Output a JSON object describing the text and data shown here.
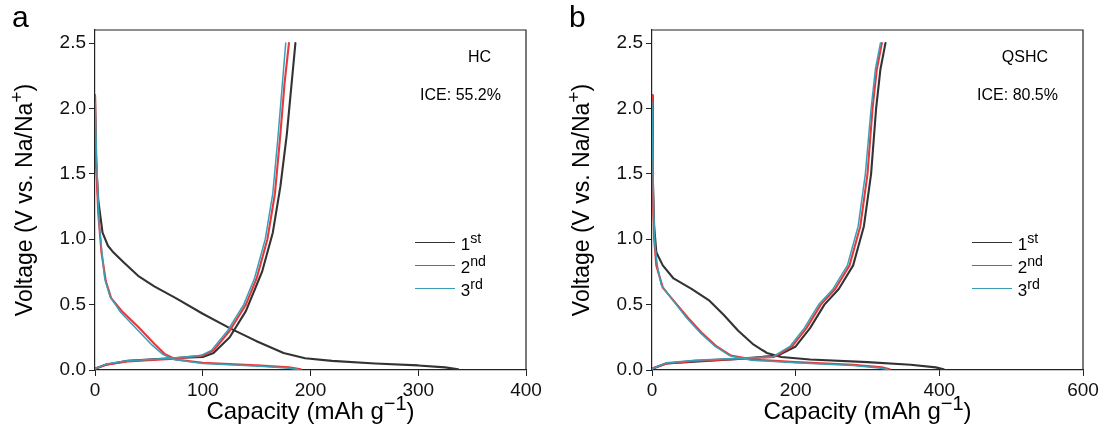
{
  "chart_data": [
    {
      "type": "line",
      "title": "a",
      "xlabel": "Capacity (mAh g$^{−1}$)",
      "ylabel": "Voltage (V vs. Na/Na$^{+}$)",
      "xlim": [
        0,
        400
      ],
      "xticks": [
        0,
        100,
        200,
        300,
        400
      ],
      "ylim": [
        0,
        2.6
      ],
      "yticks": [
        {
          "value": 0,
          "label": "0.0"
        },
        0.5,
        {
          "value": 1,
          "label": "1.0"
        },
        1.5,
        {
          "value": 2,
          "label": "2.0"
        },
        2.5
      ],
      "grid": false,
      "legend": "bottom right",
      "marker": "none",
      "line_style": "solid",
      "annotations": [
        "HC",
        "ICE: 55.2%"
      ],
      "series": [
        {
          "name": "1$^{st}$",
          "color": "#333333",
          "x": [
            0,
            1,
            3,
            7,
            12,
            17,
            27,
            40,
            55,
            75,
            100,
            125,
            150,
            175,
            195,
            220,
            260,
            300,
            325,
            337,
            null,
            0,
            10,
            30,
            70,
            100,
            110,
            125,
            140,
            155,
            165,
            172,
            178,
            182,
            186
          ],
          "values": [
            2.1,
            1.6,
            1.3,
            1.05,
            0.95,
            0.9,
            0.82,
            0.72,
            0.64,
            0.55,
            0.43,
            0.32,
            0.22,
            0.13,
            0.09,
            0.07,
            0.05,
            0.035,
            0.02,
            0.005,
            null,
            0.01,
            0.04,
            0.07,
            0.09,
            0.1,
            0.13,
            0.25,
            0.45,
            0.75,
            1.05,
            1.4,
            1.8,
            2.15,
            2.5
          ]
        },
        {
          "name": "2$^{nd}$",
          "color": "#e8383d",
          "x": [
            0,
            1,
            3,
            6,
            10,
            15,
            25,
            40,
            55,
            65,
            75,
            100,
            150,
            180,
            191,
            null,
            0,
            10,
            30,
            70,
            100,
            110,
            125,
            140,
            150,
            160,
            167,
            172,
            176,
            180
          ],
          "values": [
            2.1,
            1.6,
            1.2,
            0.9,
            0.68,
            0.55,
            0.45,
            0.33,
            0.2,
            0.12,
            0.08,
            0.055,
            0.035,
            0.02,
            0.005,
            null,
            0.01,
            0.04,
            0.065,
            0.085,
            0.11,
            0.15,
            0.3,
            0.5,
            0.7,
            1.0,
            1.35,
            1.8,
            2.2,
            2.5
          ]
        },
        {
          "name": "3$^{rd}$",
          "color": "#3a9fb5",
          "x": [
            0,
            2,
            4,
            7,
            9,
            14,
            24,
            38,
            53,
            63,
            73,
            100,
            150,
            178,
            188,
            null,
            0,
            10,
            30,
            70,
            98,
            108,
            123,
            138,
            148,
            158,
            165,
            170,
            174,
            177
          ],
          "values": [
            2.05,
            1.5,
            1.1,
            0.85,
            0.7,
            0.56,
            0.44,
            0.32,
            0.19,
            0.12,
            0.08,
            0.05,
            0.03,
            0.015,
            0.005,
            null,
            0.01,
            0.045,
            0.07,
            0.09,
            0.11,
            0.15,
            0.3,
            0.5,
            0.7,
            1.0,
            1.35,
            1.8,
            2.2,
            2.5
          ]
        }
      ]
    },
    {
      "type": "line",
      "title": "b",
      "xlabel": "Capacity (mAh g$^{−1}$)",
      "ylabel": "Voltage (V vs. Na/Na$^{+}$)",
      "xlim": [
        0,
        600
      ],
      "xticks": [
        0,
        200,
        400,
        600
      ],
      "ylim": [
        0,
        2.6
      ],
      "yticks": [
        {
          "value": 0,
          "label": "0.0"
        },
        0.5,
        {
          "value": 1,
          "label": "1.0"
        },
        1.5,
        {
          "value": 2,
          "label": "2.0"
        },
        2.5
      ],
      "grid": false,
      "legend": "bottom right",
      "marker": "none",
      "line_style": "solid",
      "annotations": [
        "QSHC",
        "ICE: 80.5%"
      ],
      "series": [
        {
          "name": "1$^{st}$",
          "color": "#333333",
          "x": [
            0,
            1,
            3,
            6,
            15,
            30,
            55,
            80,
            100,
            120,
            140,
            160,
            180,
            220,
            300,
            360,
            395,
            406,
            null,
            0,
            20,
            120,
            175,
            200,
            220,
            240,
            260,
            280,
            295,
            305,
            312,
            318,
            325
          ],
          "values": [
            2.1,
            1.5,
            1.1,
            0.9,
            0.8,
            0.7,
            0.62,
            0.53,
            0.42,
            0.3,
            0.2,
            0.13,
            0.1,
            0.08,
            0.06,
            0.04,
            0.02,
            0.005,
            null,
            0.01,
            0.05,
            0.085,
            0.11,
            0.18,
            0.32,
            0.5,
            0.62,
            0.8,
            1.1,
            1.5,
            2.0,
            2.3,
            2.5
          ]
        },
        {
          "name": "2$^{nd}$",
          "color": "#e8383d",
          "x": [
            0,
            1,
            3,
            6,
            15,
            30,
            50,
            70,
            90,
            110,
            140,
            200,
            280,
            320,
            331,
            null,
            0,
            20,
            60,
            120,
            170,
            195,
            215,
            235,
            255,
            275,
            290,
            300,
            307,
            313,
            320
          ],
          "values": [
            2.1,
            1.4,
            1.0,
            0.8,
            0.63,
            0.53,
            0.4,
            0.28,
            0.18,
            0.11,
            0.08,
            0.06,
            0.04,
            0.02,
            0.005,
            null,
            0.01,
            0.05,
            0.07,
            0.085,
            0.1,
            0.18,
            0.32,
            0.5,
            0.62,
            0.8,
            1.1,
            1.5,
            2.0,
            2.3,
            2.5
          ]
        },
        {
          "name": "3$^{rd}$",
          "color": "#3a9fb5",
          "x": [
            0,
            2,
            4,
            8,
            13,
            28,
            48,
            68,
            88,
            108,
            138,
            200,
            280,
            316,
            327,
            null,
            0,
            20,
            60,
            120,
            168,
            192,
            212,
            232,
            252,
            272,
            287,
            297,
            305,
            311,
            318
          ],
          "values": [
            2.05,
            1.3,
            0.95,
            0.78,
            0.65,
            0.54,
            0.4,
            0.28,
            0.18,
            0.11,
            0.075,
            0.055,
            0.035,
            0.015,
            0.005,
            null,
            0.01,
            0.055,
            0.075,
            0.09,
            0.1,
            0.18,
            0.32,
            0.5,
            0.62,
            0.8,
            1.1,
            1.5,
            2.0,
            2.3,
            2.5
          ]
        }
      ]
    }
  ]
}
